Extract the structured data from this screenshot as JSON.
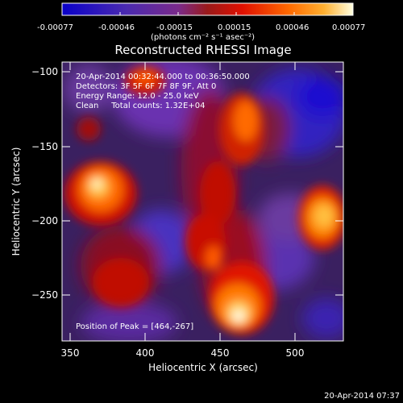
{
  "colorbar": {
    "ticks": [
      "-0.00077",
      "-0.00046",
      "-0.00015",
      "0.00015",
      "0.00046",
      "0.00077"
    ],
    "units": "(photons cm⁻² s⁻¹ asec⁻²)",
    "stops": [
      "#0a00c8",
      "#5a1ea0",
      "#7a2a8a",
      "#9a1a1a",
      "#e01000",
      "#ff6a00",
      "#ffb030",
      "#ffffe0"
    ]
  },
  "plot": {
    "title": "Reconstructed RHESSI Image",
    "xlabel": "Heliocentric X (arcsec)",
    "ylabel": "Heliocentric Y (arcsec)",
    "x_ticks": [
      "350",
      "400",
      "450",
      "500"
    ],
    "y_ticks": [
      "−100",
      "−150",
      "−200",
      "−250"
    ],
    "info_lines": [
      "20-Apr-2014 00:32:44.000 to 00:36:50.000",
      "Detectors: 3F 5F 6F 7F 8F 9F, Att 0",
      "Energy Range: 12.0 - 25.0 keV",
      "Clean     Total counts: 1.32E+04"
    ],
    "peak_text": "Position of Peak = [464,-267]"
  },
  "footer_date": "20-Apr-2014 07:37"
}
